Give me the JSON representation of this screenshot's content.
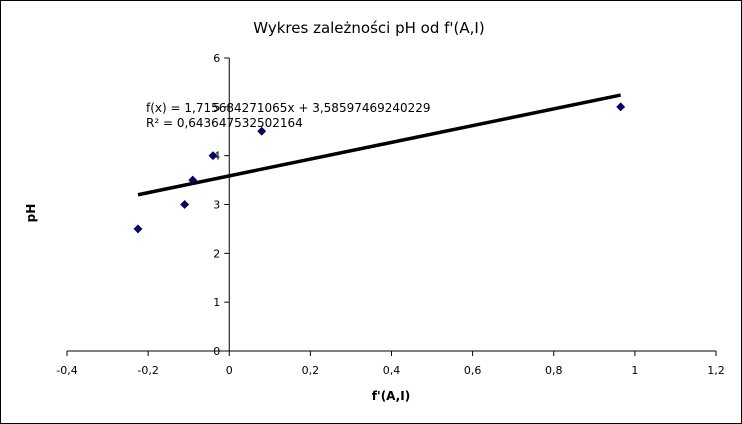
{
  "chart_data": {
    "type": "scatter",
    "title": "Wykres zależności pH od f'(A,I)",
    "xlabel": "f'(A,I)",
    "ylabel": "pH",
    "xlim": [
      -0.4,
      1.2
    ],
    "ylim": [
      0,
      6
    ],
    "xticks": [
      -0.4,
      -0.2,
      0,
      0.2,
      0.4,
      0.6,
      0.8,
      1,
      1.2
    ],
    "xtick_labels": [
      "-0,4",
      "-0,2",
      "0",
      "0,2",
      "0,4",
      "0,6",
      "0,8",
      "1",
      "1,2"
    ],
    "yticks": [
      0,
      1,
      2,
      3,
      4,
      5,
      6
    ],
    "ytick_labels": [
      "0",
      "1",
      "2",
      "3",
      "4",
      "5",
      "6"
    ],
    "grid": false,
    "legend": false,
    "marker_color": "#000080",
    "trendline_color": "#000000",
    "points": [
      {
        "x": -0.225,
        "y": 2.5
      },
      {
        "x": -0.11,
        "y": 3.0
      },
      {
        "x": -0.09,
        "y": 3.5
      },
      {
        "x": -0.04,
        "y": 4.0
      },
      {
        "x": 0.08,
        "y": 4.5
      },
      {
        "x": 0.965,
        "y": 5.0
      }
    ],
    "trendline": {
      "slope": 1.715684271065,
      "intercept": 3.58597469240229,
      "x_range": [
        -0.225,
        0.965
      ],
      "equation": "f(x) = 1,715684271065x + 3,58597469240229",
      "r2": "R² = 0,643647532502164"
    }
  }
}
